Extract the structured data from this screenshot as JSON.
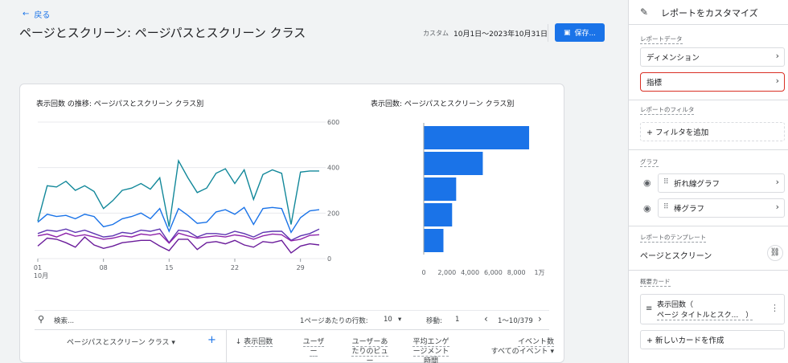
{
  "header": {
    "back": "戻る",
    "title": "ページとスクリーン: ページパスとスクリーン クラス",
    "range_label": "カスタム",
    "range_value": "10月1日～2023年10月31日",
    "save": "保存..."
  },
  "line_chart": {
    "title": "表示回数 の推移: ページパスとスクリーン クラス別",
    "x_ticks": [
      "01",
      "08",
      "15",
      "22",
      "29"
    ],
    "x_sub": "10月",
    "y_ticks": [
      "600",
      "400",
      "200",
      "0"
    ]
  },
  "bar_chart": {
    "title": "表示回数: ページパスとスクリーン クラス別",
    "x_ticks": [
      "0",
      "2,000",
      "4,000",
      "6,000",
      "8,000",
      "1万"
    ]
  },
  "chart_data": [
    {
      "type": "line",
      "title": "表示回数 の推移: ページパスとスクリーン クラス別",
      "x": [
        "01",
        "02",
        "03",
        "04",
        "05",
        "06",
        "07",
        "08",
        "09",
        "10",
        "11",
        "12",
        "13",
        "14",
        "15",
        "16",
        "17",
        "18",
        "19",
        "20",
        "21",
        "22",
        "23",
        "24",
        "25",
        "26",
        "27",
        "28",
        "29",
        "30",
        "31"
      ],
      "ylim": [
        0,
        600
      ],
      "series": [
        {
          "values": [
            165,
            320,
            315,
            340,
            300,
            320,
            295,
            220,
            255,
            300,
            310,
            330,
            305,
            355,
            140,
            430,
            355,
            290,
            310,
            375,
            395,
            330,
            390,
            260,
            370,
            390,
            375,
            150,
            380,
            385,
            385
          ],
          "color": "#12889a"
        },
        {
          "values": [
            160,
            195,
            185,
            190,
            175,
            195,
            185,
            140,
            150,
            175,
            185,
            200,
            175,
            220,
            120,
            220,
            190,
            155,
            160,
            205,
            215,
            195,
            225,
            150,
            220,
            225,
            220,
            115,
            180,
            210,
            215
          ],
          "color": "#1a73e8"
        },
        {
          "values": [
            110,
            125,
            120,
            130,
            115,
            125,
            110,
            95,
            100,
            115,
            110,
            125,
            120,
            130,
            70,
            125,
            120,
            95,
            110,
            110,
            105,
            120,
            110,
            95,
            115,
            120,
            120,
            80,
            100,
            110,
            130
          ],
          "color": "#5e35b1"
        },
        {
          "values": [
            100,
            108,
            95,
            112,
            98,
            105,
            95,
            85,
            90,
            100,
            95,
            108,
            103,
            110,
            68,
            112,
            100,
            90,
            95,
            100,
            95,
            104,
            98,
            85,
            100,
            108,
            105,
            78,
            85,
            102,
            105
          ],
          "color": "#8e24aa"
        },
        {
          "values": [
            55,
            90,
            85,
            70,
            50,
            95,
            60,
            45,
            55,
            70,
            75,
            80,
            80,
            55,
            35,
            85,
            85,
            40,
            70,
            75,
            65,
            80,
            60,
            50,
            75,
            70,
            80,
            25,
            55,
            65,
            60
          ],
          "color": "#6a1b9a"
        }
      ]
    },
    {
      "type": "bar",
      "title": "表示回数: ページパスとスクリーン クラス別",
      "values": [
        9100,
        5100,
        2800,
        2450,
        1700
      ],
      "xlim": [
        0,
        10000
      ]
    }
  ],
  "table": {
    "search_placeholder": "検索...",
    "rows_label": "1ページあたりの行数:",
    "rows_value": "10",
    "goto_label": "移動:",
    "goto_value": "1",
    "pagination": "1～10/379",
    "dim_header": "ページパスとスクリーン クラス",
    "headers": [
      "表示回数",
      "ユーザー",
      "ユーザーあたりのビュー",
      "平均エンゲージメント時間",
      "イベント数"
    ],
    "event_sub": "すべてのイベント"
  },
  "panel": {
    "title": "レポートをカスタマイズ",
    "sections": {
      "report_data": "レポートデータ",
      "filter": "レポートのフィルタ",
      "graph": "グラフ",
      "template": "レポートのテンプレート",
      "summary": "概要カード"
    },
    "dimension": "ディメンション",
    "metric": "指標",
    "add_filter": "+ フィルタを追加",
    "graph_line": "折れ線グラフ",
    "graph_bar": "棒グラフ",
    "template_name": "ページとスクリーン",
    "summary_card_1": "表示回数（",
    "summary_card_2": "ページ タイトルとスク...　）",
    "new_card": "+ 新しいカードを作成"
  }
}
